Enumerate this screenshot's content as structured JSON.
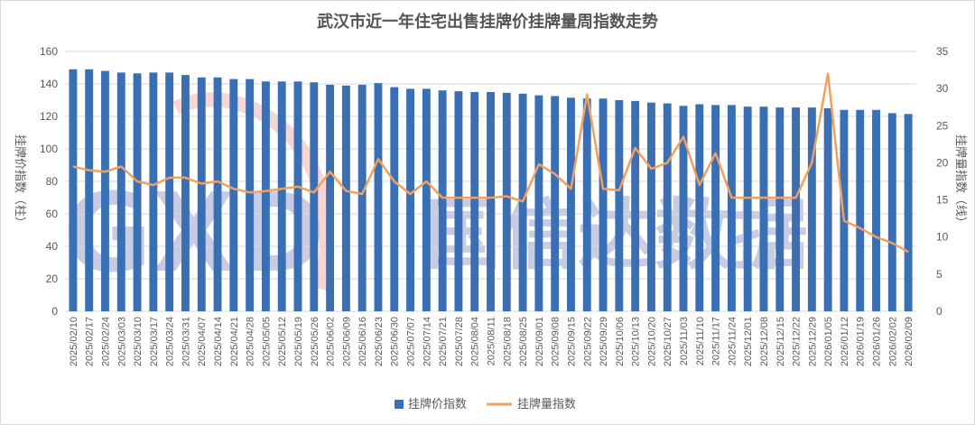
{
  "chart_data": {
    "type": "bar+line",
    "title": "武汉市近一年住宅出售挂牌价挂牌量周指数走势",
    "ylabel_left": "挂牌价指数（柱）",
    "ylabel_right": "挂牌量指数（线）",
    "ylim_left": [
      0,
      160
    ],
    "yticks_left": [
      0,
      20,
      40,
      60,
      80,
      100,
      120,
      140,
      160
    ],
    "ylim_right": [
      0,
      35
    ],
    "yticks_right": [
      0,
      5,
      10,
      15,
      20,
      25,
      30,
      35
    ],
    "grid": true,
    "legend_position": "bottom",
    "colors": {
      "bar": "#3a6fb4",
      "line": "#f2a15c",
      "grid": "#d9d9d9"
    },
    "categories": [
      "2025/02/10",
      "2025/02/17",
      "2025/02/24",
      "2025/03/03",
      "2025/03/10",
      "2025/03/17",
      "2025/03/24",
      "2025/03/31",
      "2025/04/07",
      "2025/04/14",
      "2025/04/21",
      "2025/04/28",
      "2025/05/05",
      "2025/05/12",
      "2025/05/19",
      "2025/05/26",
      "2025/06/02",
      "2025/06/09",
      "2025/06/16",
      "2025/06/23",
      "2025/06/30",
      "2025/07/07",
      "2025/07/14",
      "2025/07/21",
      "2025/07/28",
      "2025/08/04",
      "2025/08/11",
      "2025/08/18",
      "2025/08/25",
      "2025/09/01",
      "2025/09/08",
      "2025/09/15",
      "2025/09/22",
      "2025/09/29",
      "2025/10/06",
      "2025/10/13",
      "2025/10/20",
      "2025/10/27",
      "2025/11/03",
      "2025/11/10",
      "2025/11/17",
      "2025/11/24",
      "2025/12/01",
      "2025/12/08",
      "2025/12/15",
      "2025/12/22",
      "2025/12/29",
      "2026/01/05",
      "2026/01/12",
      "2026/01/19",
      "2026/01/26",
      "2026/02/02",
      "2026/02/09"
    ],
    "series": [
      {
        "name": "挂牌价指数",
        "type": "bar",
        "axis": "left",
        "values": [
          149,
          149,
          148,
          147,
          146.5,
          147,
          147,
          145.5,
          144,
          144,
          143,
          143,
          141.5,
          141.5,
          141.5,
          141,
          139.5,
          139,
          139.5,
          140.5,
          138,
          137,
          137,
          136,
          135.5,
          135,
          135,
          134.5,
          134,
          133,
          132.5,
          131.5,
          131,
          131,
          130,
          129.5,
          128.5,
          128,
          126.5,
          127.5,
          127,
          127,
          126,
          126,
          125.5,
          125.5,
          125.5,
          125,
          124,
          124,
          124,
          122,
          121.5
        ]
      },
      {
        "name": "挂牌量指数",
        "type": "line",
        "axis": "right",
        "values": [
          19.5,
          19,
          18.8,
          19.5,
          17.5,
          17,
          18,
          18,
          17.2,
          17.5,
          16.5,
          16,
          16.2,
          16.5,
          16.8,
          16,
          18.8,
          16.2,
          15.8,
          20.5,
          17.5,
          15.8,
          17.5,
          15.3,
          15.3,
          15.3,
          15.3,
          15.5,
          14.8,
          19.8,
          18.5,
          16.5,
          29.2,
          16.5,
          16.3,
          22,
          19.2,
          20,
          23.5,
          17,
          21.3,
          15.3,
          15.3,
          15.3,
          15.3,
          15.3,
          20,
          32,
          12.2,
          11.2,
          10,
          9.2,
          8
        ]
      }
    ]
  },
  "watermark": {
    "logo_text": "GXD",
    "text": "国信达数据"
  }
}
